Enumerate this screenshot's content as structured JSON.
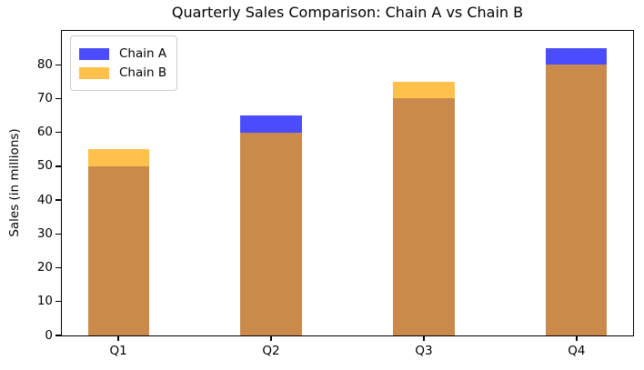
{
  "chart_data": {
    "type": "bar",
    "title": "Quarterly Sales Comparison: Chain A vs Chain B",
    "ylabel": "Sales (in millions)",
    "xlabel": "",
    "categories": [
      "Q1",
      "Q2",
      "Q3",
      "Q4"
    ],
    "series": [
      {
        "name": "Chain A",
        "values": [
          50,
          65,
          70,
          85
        ],
        "color": "#0000FF"
      },
      {
        "name": "Chain B",
        "values": [
          55,
          60,
          75,
          80
        ],
        "color": "#FFA500"
      }
    ],
    "bar_style": "overlaid",
    "bar_alpha": 0.7,
    "series_display_colors": [
      "#4C4CFF",
      "#FFC04C"
    ],
    "overlap_display_color": "#C98A4C",
    "ylim": [
      0,
      90
    ],
    "xlim": [
      -0.37,
      3.37
    ],
    "bar_width": 0.4,
    "yticks": [
      0,
      10,
      20,
      30,
      40,
      50,
      60,
      70,
      80
    ],
    "grid": false,
    "legend": {
      "position": "upper left",
      "entries": [
        "Chain A",
        "Chain B"
      ]
    }
  }
}
